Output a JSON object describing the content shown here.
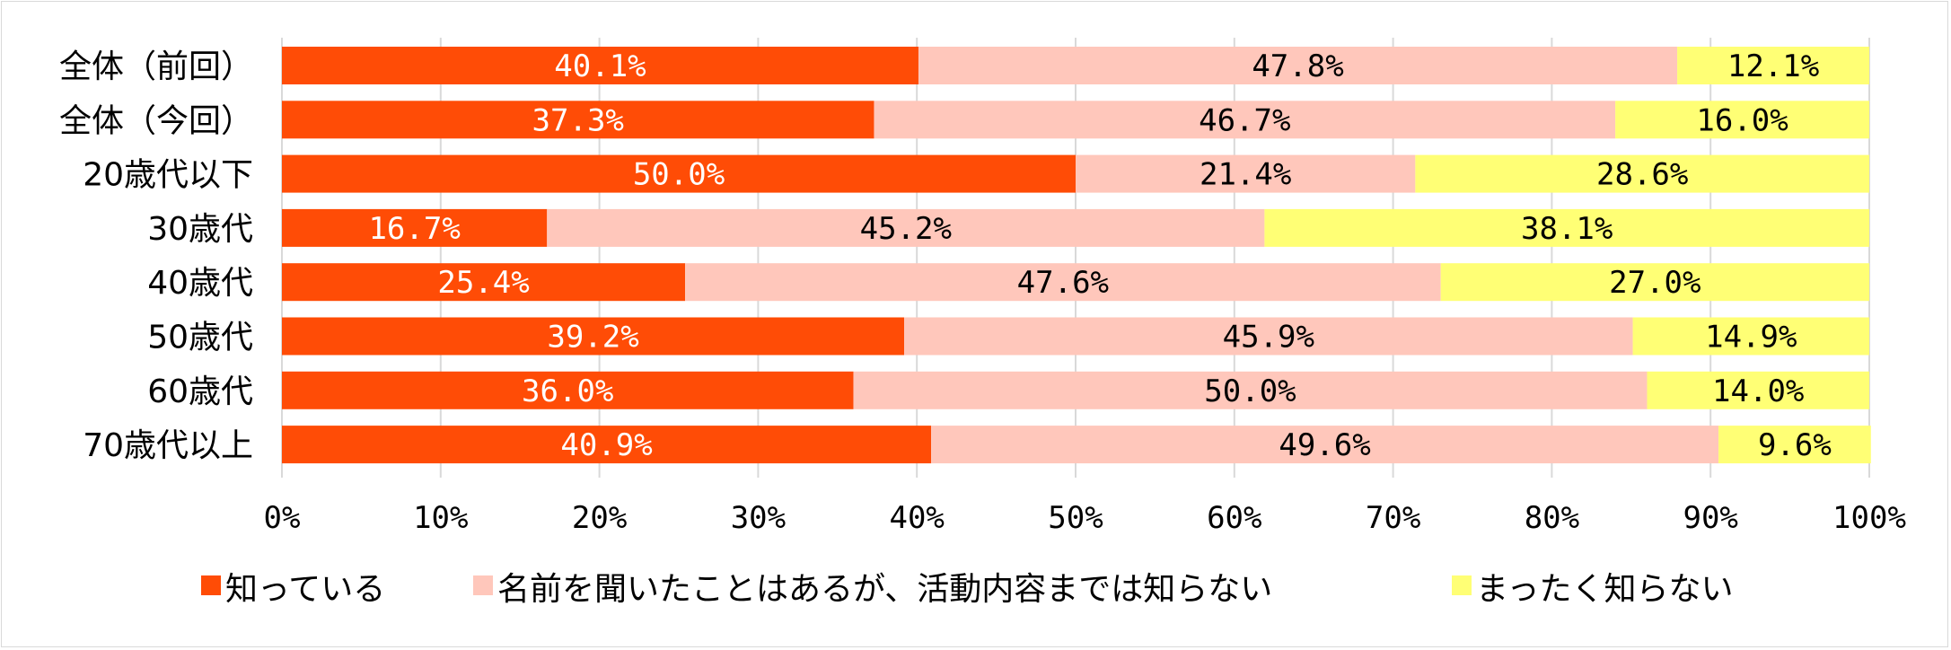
{
  "chart_data": {
    "type": "bar",
    "orientation": "horizontal",
    "stacked": "percent",
    "categories": [
      "全体（前回）",
      "全体（今回）",
      "20歳代以下",
      "30歳代",
      "40歳代",
      "50歳代",
      "60歳代",
      "70歳代以上"
    ],
    "series": [
      {
        "name": "知っている",
        "color": "#ff4c06",
        "label_color": "#ffffff",
        "values": [
          40.1,
          37.3,
          50.0,
          16.7,
          25.4,
          39.2,
          36.0,
          40.9
        ],
        "labels": [
          "40.1%",
          "37.3%",
          "50.0%",
          "16.7%",
          "25.4%",
          "39.2%",
          "36.0%",
          "40.9%"
        ]
      },
      {
        "name": "名前を聞いたことはあるが、活動内容までは知らない",
        "color": "#ffc7bb",
        "label_color": "#000000",
        "values": [
          47.8,
          46.7,
          21.4,
          45.2,
          47.6,
          45.9,
          50.0,
          49.6
        ],
        "labels": [
          "47.8%",
          "46.7%",
          "21.4%",
          "45.2%",
          "47.6%",
          "45.9%",
          "50.0%",
          "49.6%"
        ]
      },
      {
        "name": "まったく知らない",
        "color": "#ffff75",
        "label_color": "#000000",
        "values": [
          12.1,
          16.0,
          28.6,
          38.1,
          27.0,
          14.9,
          14.0,
          9.6
        ],
        "labels": [
          "12.1%",
          "16.0%",
          "28.6%",
          "38.1%",
          "27.0%",
          "14.9%",
          "14.0%",
          "9.6%"
        ]
      }
    ],
    "x_ticks": [
      "0%",
      "10%",
      "20%",
      "30%",
      "40%",
      "50%",
      "60%",
      "70%",
      "80%",
      "90%",
      "100%"
    ],
    "xlim": [
      0,
      100
    ],
    "grid": true,
    "legend_position": "bottom",
    "title": "",
    "xlabel": "",
    "ylabel": ""
  }
}
